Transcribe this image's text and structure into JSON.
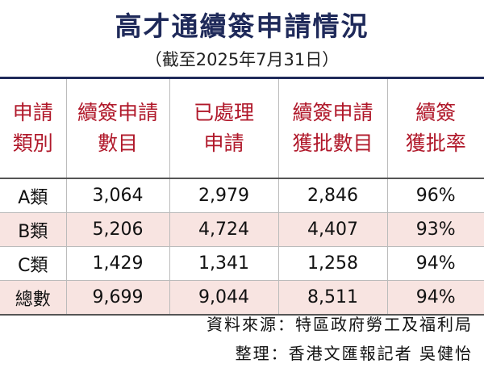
{
  "header": {
    "title": "高才通續簽申請情況",
    "subtitle": "（截至2025年7月31日）"
  },
  "table": {
    "columns": [
      [
        "申請",
        "類別"
      ],
      [
        "續簽申請",
        "數目"
      ],
      [
        "已處理",
        "申請"
      ],
      [
        "續簽申請",
        "獲批數目"
      ],
      [
        "續簽",
        "獲批率"
      ]
    ],
    "rows": [
      [
        "A類",
        "3,064",
        "2,979",
        "2,846",
        "96%"
      ],
      [
        "B類",
        "5,206",
        "4,724",
        "4,407",
        "93%"
      ],
      [
        "C類",
        "1,429",
        "1,341",
        "1,258",
        "94%"
      ],
      [
        "總數",
        "9,699",
        "9,044",
        "8,511",
        "94%"
      ]
    ]
  },
  "footer": {
    "source": "資料來源：特區政府勞工及福利局",
    "credit": "整理：香港文匯報記者 吳健怡"
  }
}
